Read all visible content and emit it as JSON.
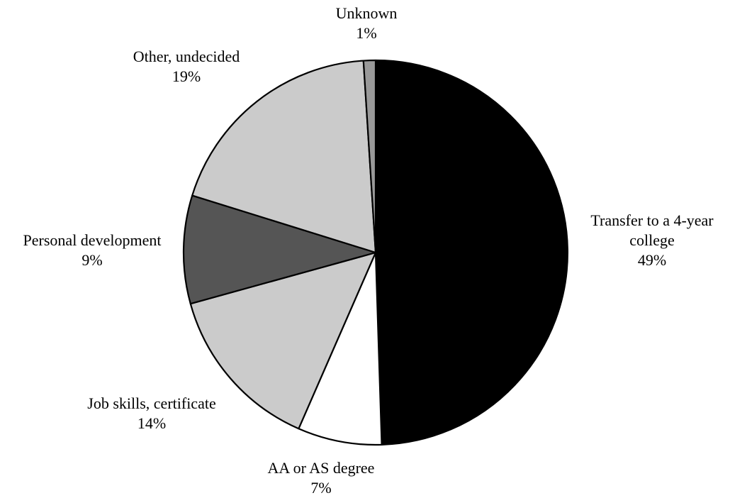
{
  "chart_data": {
    "type": "pie",
    "title": "",
    "slices": [
      {
        "label_lines": [
          "Transfer to a 4-year",
          "college"
        ],
        "percent_label": "49%",
        "value": 49,
        "color": "#000000"
      },
      {
        "label_lines": [
          "AA or AS degree"
        ],
        "percent_label": "7%",
        "value": 7,
        "color": "#ffffff"
      },
      {
        "label_lines": [
          "Job skills, certificate"
        ],
        "percent_label": "14%",
        "value": 14,
        "color": "#cbcbcb"
      },
      {
        "label_lines": [
          "Personal development"
        ],
        "percent_label": "9%",
        "value": 9,
        "color": "#555555"
      },
      {
        "label_lines": [
          "Other, undecided"
        ],
        "percent_label": "19%",
        "value": 19,
        "color": "#cbcbcb"
      },
      {
        "label_lines": [
          "Unknown"
        ],
        "percent_label": "1%",
        "value": 1,
        "color": "#999999"
      }
    ]
  }
}
